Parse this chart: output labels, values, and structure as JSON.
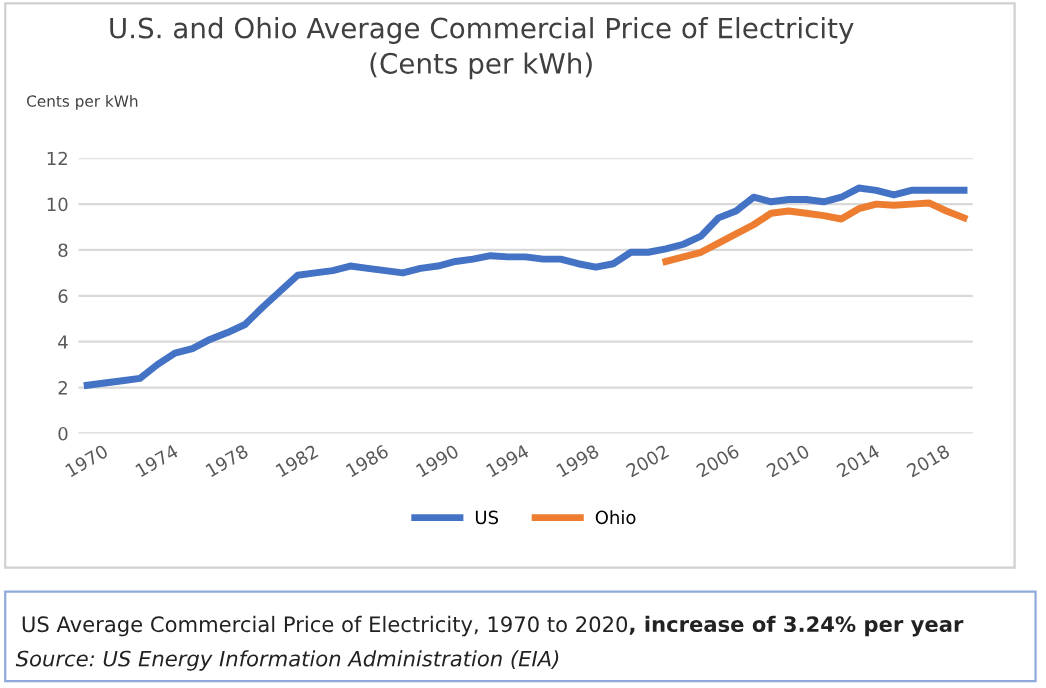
{
  "chart_data": {
    "type": "line",
    "title": "U.S. and Ohio Average Commercial Price of Electricity\n(Cents per kWh)",
    "ylabel": "Cents per kWh",
    "x": [
      1970,
      1971,
      1972,
      1973,
      1974,
      1975,
      1976,
      1977,
      1978,
      1979,
      1980,
      1981,
      1982,
      1983,
      1984,
      1985,
      1986,
      1987,
      1988,
      1989,
      1990,
      1991,
      1992,
      1993,
      1994,
      1995,
      1996,
      1997,
      1998,
      1999,
      2000,
      2001,
      2002,
      2003,
      2004,
      2005,
      2006,
      2007,
      2008,
      2009,
      2010,
      2011,
      2012,
      2013,
      2014,
      2015,
      2016,
      2017,
      2018,
      2019,
      2020
    ],
    "series": [
      {
        "name": "US",
        "color": "#4472c4",
        "values": [
          2.1,
          2.2,
          2.3,
          2.4,
          3.0,
          3.5,
          3.7,
          4.1,
          4.4,
          4.75,
          5.5,
          6.2,
          6.9,
          7.0,
          7.1,
          7.3,
          7.2,
          7.1,
          7.0,
          7.2,
          7.3,
          7.5,
          7.6,
          7.75,
          7.7,
          7.7,
          7.6,
          7.6,
          7.4,
          7.25,
          7.4,
          7.9,
          7.9,
          8.05,
          8.25,
          8.6,
          9.4,
          9.7,
          10.3,
          10.1,
          10.2,
          10.2,
          10.1,
          10.3,
          10.7,
          10.6,
          10.4,
          10.6,
          10.6,
          10.6,
          10.6
        ]
      },
      {
        "name": "Ohio",
        "color": "#ed7d31",
        "values": [
          null,
          null,
          null,
          null,
          null,
          null,
          null,
          null,
          null,
          null,
          null,
          null,
          null,
          null,
          null,
          null,
          null,
          null,
          null,
          null,
          null,
          null,
          null,
          null,
          null,
          null,
          null,
          null,
          null,
          null,
          null,
          null,
          null,
          7.5,
          7.7,
          7.9,
          8.3,
          8.7,
          9.1,
          9.6,
          9.7,
          9.6,
          9.5,
          9.35,
          9.8,
          10.0,
          9.95,
          10.0,
          10.05,
          9.7,
          9.4
        ]
      }
    ],
    "xlim": [
      1969.5,
      2020.5
    ],
    "xticks": [
      1970,
      1974,
      1978,
      1982,
      1986,
      1990,
      1994,
      1998,
      2002,
      2006,
      2010,
      2014,
      2018
    ],
    "ylim": [
      0,
      12
    ],
    "yticks": [
      0,
      2,
      4,
      6,
      8,
      10,
      12
    ],
    "grid": "y",
    "legend": "bottom",
    "line_style": "solid",
    "marker": "none",
    "annotations": [
      "US Average Commercial Price of Electricity, 1970 to 2020",
      ", increase of 3.24% per year",
      "Source: US Energy Information Administration (EIA)"
    ]
  }
}
